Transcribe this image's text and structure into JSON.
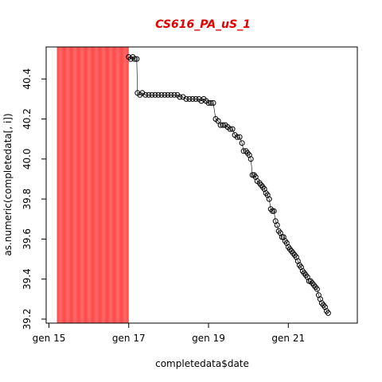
{
  "chart_data": {
    "type": "scatter",
    "title": "CS616_PA_uS_1",
    "xlabel": "completedata$date",
    "ylabel": "as.numeric(completedata[, i])",
    "x_ticks": [
      {
        "label": "gen 15",
        "day": 15
      },
      {
        "label": "gen 17",
        "day": 17
      },
      {
        "label": "gen 19",
        "day": 19
      },
      {
        "label": "gen 21",
        "day": 21
      }
    ],
    "y_ticks": [
      39.2,
      39.4,
      39.6,
      39.8,
      40.0,
      40.2,
      40.4
    ],
    "xlim": [
      14.93,
      22.73
    ],
    "ylim": [
      39.18,
      40.56
    ],
    "highlight_band": {
      "start_day": 15.2,
      "end_day": 17.0,
      "color": "#ff5050"
    },
    "series": [
      {
        "marker": "open-circle",
        "line": "thin connecting line",
        "points": [
          [
            17.0,
            40.51
          ],
          [
            17.05,
            40.5
          ],
          [
            17.1,
            40.51
          ],
          [
            17.15,
            40.5
          ],
          [
            17.2,
            40.5
          ],
          [
            17.22,
            40.33
          ],
          [
            17.28,
            40.32
          ],
          [
            17.34,
            40.33
          ],
          [
            17.42,
            40.32
          ],
          [
            17.5,
            40.32
          ],
          [
            17.58,
            40.32
          ],
          [
            17.66,
            40.32
          ],
          [
            17.74,
            40.32
          ],
          [
            17.82,
            40.32
          ],
          [
            17.9,
            40.32
          ],
          [
            17.98,
            40.32
          ],
          [
            18.06,
            40.32
          ],
          [
            18.14,
            40.32
          ],
          [
            18.22,
            40.32
          ],
          [
            18.28,
            40.31
          ],
          [
            18.36,
            40.31
          ],
          [
            18.44,
            40.3
          ],
          [
            18.52,
            40.3
          ],
          [
            18.6,
            40.3
          ],
          [
            18.68,
            40.3
          ],
          [
            18.76,
            40.3
          ],
          [
            18.82,
            40.29
          ],
          [
            18.88,
            40.3
          ],
          [
            18.94,
            40.29
          ],
          [
            19.0,
            40.28
          ],
          [
            19.06,
            40.28
          ],
          [
            19.12,
            40.28
          ],
          [
            19.18,
            40.2
          ],
          [
            19.24,
            40.19
          ],
          [
            19.3,
            40.17
          ],
          [
            19.36,
            40.17
          ],
          [
            19.42,
            40.17
          ],
          [
            19.48,
            40.16
          ],
          [
            19.54,
            40.15
          ],
          [
            19.6,
            40.15
          ],
          [
            19.66,
            40.12
          ],
          [
            19.72,
            40.11
          ],
          [
            19.78,
            40.11
          ],
          [
            19.84,
            40.08
          ],
          [
            19.88,
            40.04
          ],
          [
            19.94,
            40.04
          ],
          [
            19.98,
            40.03
          ],
          [
            20.02,
            40.02
          ],
          [
            20.06,
            40.0
          ],
          [
            20.1,
            39.92
          ],
          [
            20.14,
            39.92
          ],
          [
            20.18,
            39.91
          ],
          [
            20.22,
            39.89
          ],
          [
            20.28,
            39.88
          ],
          [
            20.32,
            39.87
          ],
          [
            20.36,
            39.86
          ],
          [
            20.4,
            39.85
          ],
          [
            20.44,
            39.83
          ],
          [
            20.48,
            39.82
          ],
          [
            20.52,
            39.8
          ],
          [
            20.56,
            39.75
          ],
          [
            20.6,
            39.74
          ],
          [
            20.64,
            39.74
          ],
          [
            20.68,
            39.69
          ],
          [
            20.72,
            39.67
          ],
          [
            20.76,
            39.64
          ],
          [
            20.8,
            39.63
          ],
          [
            20.84,
            39.61
          ],
          [
            20.88,
            39.61
          ],
          [
            20.92,
            39.59
          ],
          [
            20.96,
            39.58
          ],
          [
            21.0,
            39.56
          ],
          [
            21.04,
            39.55
          ],
          [
            21.08,
            39.54
          ],
          [
            21.12,
            39.53
          ],
          [
            21.16,
            39.52
          ],
          [
            21.2,
            39.51
          ],
          [
            21.24,
            39.49
          ],
          [
            21.28,
            39.47
          ],
          [
            21.32,
            39.46
          ],
          [
            21.36,
            39.44
          ],
          [
            21.4,
            39.43
          ],
          [
            21.44,
            39.42
          ],
          [
            21.48,
            39.41
          ],
          [
            21.52,
            39.39
          ],
          [
            21.56,
            39.39
          ],
          [
            21.6,
            39.38
          ],
          [
            21.64,
            39.37
          ],
          [
            21.68,
            39.36
          ],
          [
            21.72,
            39.35
          ],
          [
            21.76,
            39.32
          ],
          [
            21.8,
            39.3
          ],
          [
            21.84,
            39.28
          ],
          [
            21.88,
            39.27
          ],
          [
            21.92,
            39.26
          ],
          [
            21.96,
            39.24
          ],
          [
            22.0,
            39.23
          ]
        ]
      }
    ]
  }
}
